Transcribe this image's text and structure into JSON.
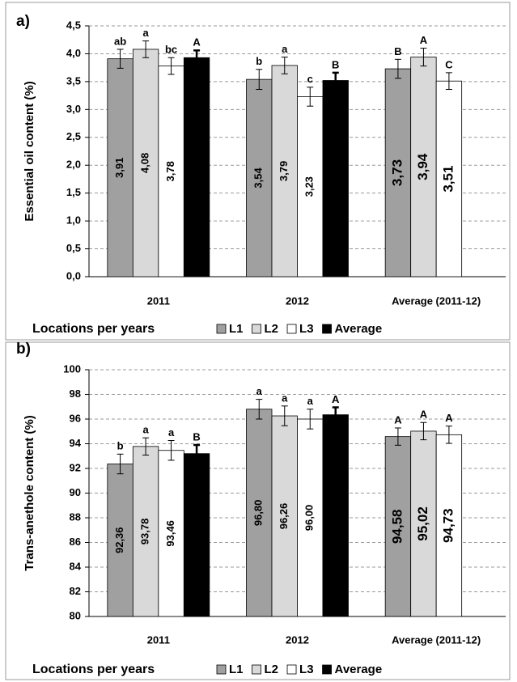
{
  "chart_data": [
    {
      "type": "bar",
      "panel_label": "a)",
      "ylabel": "Essential oil content (%)",
      "legend_title": "Locations per years",
      "categories": [
        "2011",
        "2012",
        "Average (2011-12)"
      ],
      "series": [
        {
          "name": "L1",
          "color": "#a0a0a0",
          "values": [
            3.91,
            3.54,
            3.73
          ],
          "value_labels": [
            "3,91",
            "3,54",
            "3,73"
          ],
          "errors": [
            0.17,
            0.18,
            0.17
          ],
          "letters": [
            "ab",
            "b",
            "B"
          ]
        },
        {
          "name": "L2",
          "color": "#d9d9d9",
          "values": [
            4.08,
            3.79,
            3.94
          ],
          "value_labels": [
            "4,08",
            "3,79",
            "3,94"
          ],
          "errors": [
            0.15,
            0.15,
            0.16
          ],
          "letters": [
            "a",
            "a",
            "A"
          ]
        },
        {
          "name": "L3",
          "color": "#ffffff",
          "values": [
            3.78,
            3.23,
            3.51
          ],
          "value_labels": [
            "3,78",
            "3,23",
            "3,51"
          ],
          "errors": [
            0.15,
            0.17,
            0.15
          ],
          "letters": [
            "bc",
            "c",
            "C"
          ]
        },
        {
          "name": "Average",
          "color": "#000000",
          "values": [
            3.93,
            3.52,
            null
          ],
          "value_labels": [
            "3,93",
            "3,52",
            null
          ],
          "errors": [
            0.13,
            0.14,
            null
          ],
          "letters": [
            "A",
            "B",
            null
          ]
        }
      ],
      "ylim": [
        0,
        4.5
      ],
      "yticks": [
        {
          "value": 0,
          "label": "0,0"
        },
        {
          "value": 0.5,
          "label": "0,5"
        },
        {
          "value": 1,
          "label": "1,0"
        },
        {
          "value": 1.5,
          "label": "1,5"
        },
        {
          "value": 2,
          "label": "2,0"
        },
        {
          "value": 2.5,
          "label": "2,5"
        },
        {
          "value": 3,
          "label": "3,0"
        },
        {
          "value": 3.5,
          "label": "3,5"
        },
        {
          "value": 4,
          "label": "4,0"
        },
        {
          "value": 4.5,
          "label": "4,5"
        }
      ],
      "grid": true
    },
    {
      "type": "bar",
      "panel_label": "b)",
      "ylabel": "Trans-anethole content (%)",
      "legend_title": "Locations per years",
      "categories": [
        "2011",
        "2012",
        "Average (2011-12)"
      ],
      "series": [
        {
          "name": "L1",
          "color": "#a0a0a0",
          "values": [
            92.36,
            96.8,
            94.58
          ],
          "value_labels": [
            "92,36",
            "96,80",
            "94,58"
          ],
          "errors": [
            0.8,
            0.8,
            0.7
          ],
          "letters": [
            "b",
            "a",
            "A"
          ]
        },
        {
          "name": "L2",
          "color": "#d9d9d9",
          "values": [
            93.78,
            96.26,
            95.02
          ],
          "value_labels": [
            "93,78",
            "96,26",
            "95,02"
          ],
          "errors": [
            0.7,
            0.8,
            0.7
          ],
          "letters": [
            "a",
            "a",
            "A"
          ]
        },
        {
          "name": "L3",
          "color": "#ffffff",
          "values": [
            93.46,
            96.0,
            94.73
          ],
          "value_labels": [
            "93,46",
            "96,00",
            "94,73"
          ],
          "errors": [
            0.8,
            0.8,
            0.7
          ],
          "letters": [
            "a",
            "a",
            "A"
          ]
        },
        {
          "name": "Average",
          "color": "#000000",
          "values": [
            93.2,
            96.35,
            null
          ],
          "value_labels": [
            "93,20",
            "96,35",
            null
          ],
          "errors": [
            0.7,
            0.6,
            null
          ],
          "letters": [
            "B",
            "A",
            null
          ]
        }
      ],
      "ylim": [
        80,
        100
      ],
      "yticks": [
        80,
        82,
        84,
        86,
        88,
        90,
        92,
        94,
        96,
        98,
        100
      ],
      "grid": true
    }
  ]
}
